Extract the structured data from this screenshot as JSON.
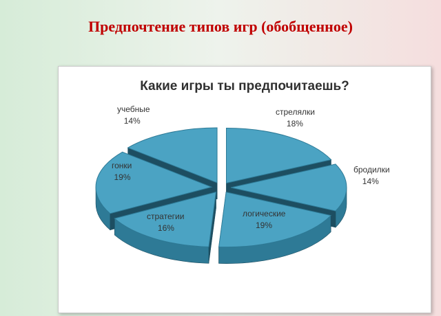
{
  "slide": {
    "title": "Предпочтение типов игр (обобщенное)"
  },
  "colors": {
    "slice_top": "#4ba3c3",
    "slice_edge": "#2e7a96",
    "slice_side_dark": "#1d4e61",
    "title_red": "#c00000"
  },
  "chart_data": {
    "type": "pie",
    "title": "Какие игры ты предпочитаешь?",
    "exploded": true,
    "three_d": true,
    "slices": [
      {
        "label": "стрелялки",
        "value": 18,
        "value_label": "18%"
      },
      {
        "label": "бродилки",
        "value": 14,
        "value_label": "14%"
      },
      {
        "label": "логические",
        "value": 19,
        "value_label": "19%"
      },
      {
        "label": "стратегии",
        "value": 16,
        "value_label": "16%"
      },
      {
        "label": "гонки",
        "value": 19,
        "value_label": "19%"
      },
      {
        "label": "учебные",
        "value": 14,
        "value_label": "14%"
      }
    ]
  }
}
